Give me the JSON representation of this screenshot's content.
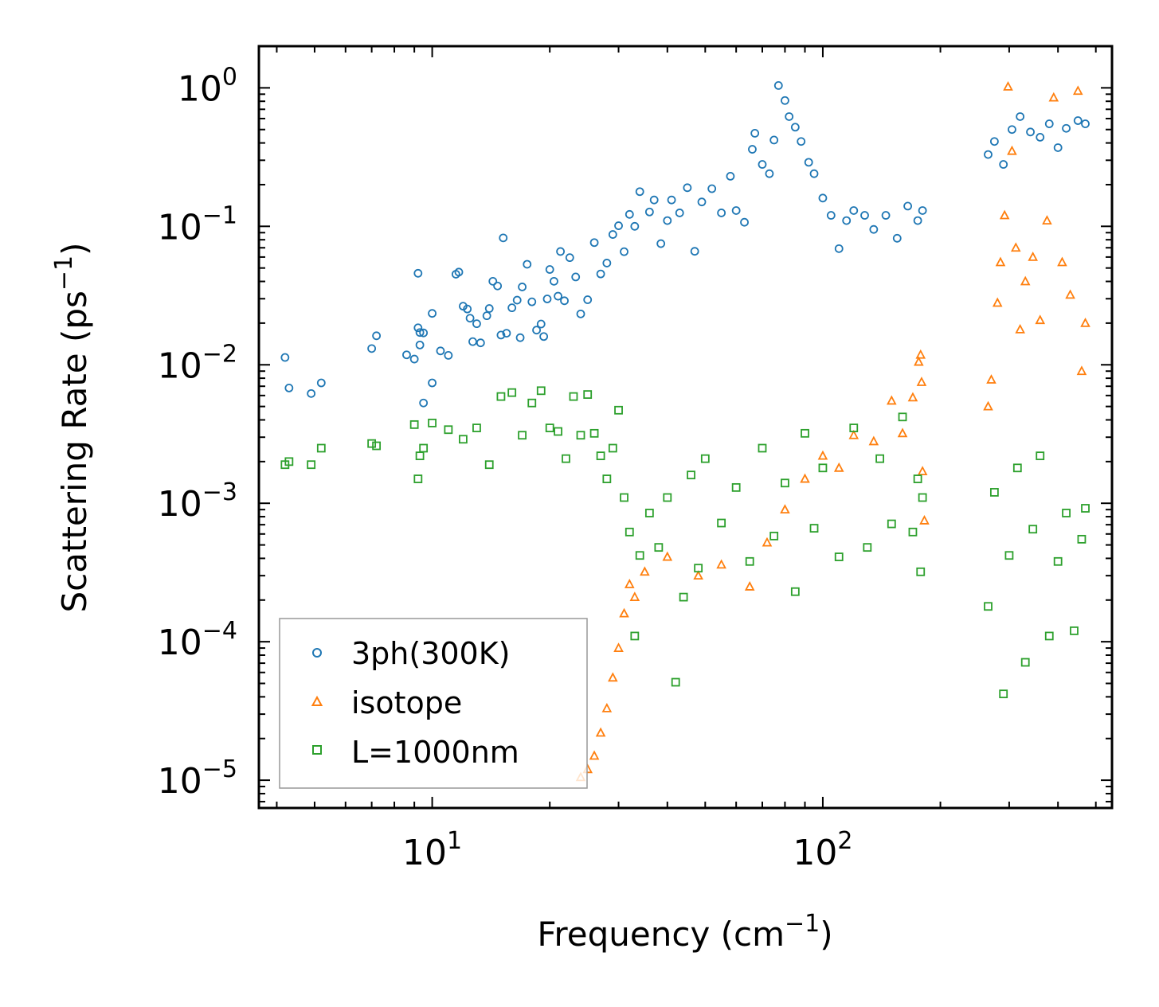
{
  "chart_data": {
    "type": "scatter",
    "title": "",
    "xlabel": {
      "text": "Frequency (cm",
      "sup": "−1",
      "close": ")"
    },
    "ylabel": {
      "text": "Scattering Rate (ps",
      "sup": "−1",
      "close": ")"
    },
    "xscale": "log",
    "yscale": "log",
    "xlim": [
      3.6,
      550
    ],
    "ylim": [
      6.3e-06,
      2.0
    ],
    "grid": false,
    "legend_position": "lower-left",
    "x_major_ticks": [
      {
        "value": 10,
        "base": "10",
        "exp": "1"
      },
      {
        "value": 100,
        "base": "10",
        "exp": "2"
      }
    ],
    "y_major_ticks": [
      {
        "value": 1,
        "base": "10",
        "exp": "0"
      },
      {
        "value": 0.1,
        "base": "10",
        "exp": "−1"
      },
      {
        "value": 0.01,
        "base": "10",
        "exp": "−2"
      },
      {
        "value": 0.001,
        "base": "10",
        "exp": "−3"
      },
      {
        "value": 0.0001,
        "base": "10",
        "exp": "−4"
      },
      {
        "value": 1e-05,
        "base": "10",
        "exp": "−5"
      }
    ],
    "series": [
      {
        "name": "3ph(300K)",
        "marker": "circle",
        "color": "#1f77b4",
        "points": [
          [
            4.2,
            0.0113
          ],
          [
            4.3,
            0.0068
          ],
          [
            4.9,
            0.0062
          ],
          [
            5.2,
            0.0074
          ],
          [
            7.0,
            0.0131
          ],
          [
            7.2,
            0.0162
          ],
          [
            8.6,
            0.0118
          ],
          [
            9.0,
            0.011
          ],
          [
            9.2,
            0.0458
          ],
          [
            9.2,
            0.0185
          ],
          [
            9.3,
            0.0171
          ],
          [
            9.3,
            0.0139
          ],
          [
            9.5,
            0.017
          ],
          [
            9.5,
            0.0053
          ],
          [
            10.0,
            0.0074
          ],
          [
            10.0,
            0.0235
          ],
          [
            10.5,
            0.0126
          ],
          [
            11.0,
            0.0117
          ],
          [
            11.5,
            0.0451
          ],
          [
            11.7,
            0.0467
          ],
          [
            12.0,
            0.0265
          ],
          [
            12.3,
            0.0253
          ],
          [
            12.5,
            0.0217
          ],
          [
            12.7,
            0.0147
          ],
          [
            13.0,
            0.0198
          ],
          [
            13.3,
            0.0144
          ],
          [
            13.8,
            0.0226
          ],
          [
            14.0,
            0.0255
          ],
          [
            14.3,
            0.0401
          ],
          [
            14.7,
            0.0371
          ],
          [
            15.0,
            0.0164
          ],
          [
            15.2,
            0.0825
          ],
          [
            15.5,
            0.0169
          ],
          [
            16.0,
            0.0258
          ],
          [
            16.5,
            0.0293
          ],
          [
            16.8,
            0.0157
          ],
          [
            17.0,
            0.0365
          ],
          [
            17.5,
            0.0532
          ],
          [
            18.0,
            0.0285
          ],
          [
            18.5,
            0.0178
          ],
          [
            19.0,
            0.0197
          ],
          [
            19.3,
            0.016
          ],
          [
            19.7,
            0.0299
          ],
          [
            20.0,
            0.0488
          ],
          [
            20.5,
            0.0401
          ],
          [
            21.0,
            0.0313
          ],
          [
            21.3,
            0.0658
          ],
          [
            21.8,
            0.029
          ],
          [
            22.5,
            0.0594
          ],
          [
            23.3,
            0.0431
          ],
          [
            24.0,
            0.0233
          ],
          [
            25.0,
            0.0295
          ],
          [
            26.0,
            0.0763
          ],
          [
            27.0,
            0.0453
          ],
          [
            28.0,
            0.0543
          ],
          [
            29.0,
            0.0873
          ],
          [
            30.0,
            0.101
          ],
          [
            31.0,
            0.0656
          ],
          [
            32.0,
            0.122
          ],
          [
            33.0,
            0.1
          ],
          [
            34.0,
            0.178
          ],
          [
            36.0,
            0.127
          ],
          [
            37.0,
            0.155
          ],
          [
            38.5,
            0.075
          ],
          [
            40.0,
            0.11
          ],
          [
            41.0,
            0.155
          ],
          [
            43.0,
            0.125
          ],
          [
            45.0,
            0.19
          ],
          [
            47.0,
            0.066
          ],
          [
            49.0,
            0.15
          ],
          [
            52.0,
            0.187
          ],
          [
            55.0,
            0.125
          ],
          [
            58.0,
            0.23
          ],
          [
            60.0,
            0.13
          ],
          [
            63.0,
            0.107
          ],
          [
            66.0,
            0.36
          ],
          [
            67.0,
            0.47
          ],
          [
            70.0,
            0.28
          ],
          [
            73.0,
            0.24
          ],
          [
            75.0,
            0.42
          ],
          [
            77.0,
            1.04
          ],
          [
            80.0,
            0.81
          ],
          [
            82.0,
            0.62
          ],
          [
            85.0,
            0.52
          ],
          [
            88.0,
            0.41
          ],
          [
            92.0,
            0.29
          ],
          [
            95.0,
            0.24
          ],
          [
            100.0,
            0.16
          ],
          [
            105.0,
            0.12
          ],
          [
            110.0,
            0.069
          ],
          [
            115.0,
            0.11
          ],
          [
            120.0,
            0.13
          ],
          [
            128.0,
            0.12
          ],
          [
            135.0,
            0.095
          ],
          [
            145.0,
            0.12
          ],
          [
            155.0,
            0.082
          ],
          [
            165.0,
            0.14
          ],
          [
            175.0,
            0.11
          ],
          [
            180.0,
            0.13
          ],
          [
            265.0,
            0.33
          ],
          [
            275.0,
            0.41
          ],
          [
            290.0,
            0.28
          ],
          [
            305.0,
            0.5
          ],
          [
            320.0,
            0.62
          ],
          [
            340.0,
            0.48
          ],
          [
            360.0,
            0.44
          ],
          [
            380.0,
            0.55
          ],
          [
            400.0,
            0.37
          ],
          [
            420.0,
            0.51
          ],
          [
            450.0,
            0.58
          ],
          [
            470.0,
            0.55
          ]
        ]
      },
      {
        "name": "isotope",
        "marker": "triangle",
        "color": "#ff7f0e",
        "points": [
          [
            24.0,
            1.05e-05
          ],
          [
            25.0,
            1.2e-05
          ],
          [
            26.0,
            1.5e-05
          ],
          [
            27.0,
            2.2e-05
          ],
          [
            28.0,
            3.3e-05
          ],
          [
            29.0,
            5.5e-05
          ],
          [
            30.0,
            9e-05
          ],
          [
            31.0,
            0.00016
          ],
          [
            32.0,
            0.00026
          ],
          [
            33.0,
            0.00021
          ],
          [
            35.0,
            0.00032
          ],
          [
            40.0,
            0.00041
          ],
          [
            48.0,
            0.0003
          ],
          [
            55.0,
            0.00036
          ],
          [
            65.0,
            0.00025
          ],
          [
            72.0,
            0.00052
          ],
          [
            80.0,
            0.0009
          ],
          [
            90.0,
            0.0015
          ],
          [
            100.0,
            0.0022
          ],
          [
            110.0,
            0.0018
          ],
          [
            120.0,
            0.0031
          ],
          [
            135.0,
            0.0028
          ],
          [
            150.0,
            0.0055
          ],
          [
            160.0,
            0.0032
          ],
          [
            170.0,
            0.0058
          ],
          [
            176.0,
            0.0105
          ],
          [
            178.0,
            0.0118
          ],
          [
            179.0,
            0.0075
          ],
          [
            180.0,
            0.0017
          ],
          [
            182.0,
            0.00075
          ],
          [
            265.0,
            0.005
          ],
          [
            270.0,
            0.0078
          ],
          [
            280.0,
            0.028
          ],
          [
            285.0,
            0.055
          ],
          [
            292.0,
            0.12
          ],
          [
            298.0,
            1.02
          ],
          [
            305.0,
            0.35
          ],
          [
            312.0,
            0.07
          ],
          [
            320.0,
            0.018
          ],
          [
            330.0,
            0.04
          ],
          [
            345.0,
            0.06
          ],
          [
            360.0,
            0.021
          ],
          [
            375.0,
            0.11
          ],
          [
            390.0,
            0.85
          ],
          [
            410.0,
            0.055
          ],
          [
            430.0,
            0.032
          ],
          [
            450.0,
            0.95
          ],
          [
            460.0,
            0.009
          ],
          [
            470.0,
            0.02
          ]
        ]
      },
      {
        "name": "L=1000nm",
        "marker": "square",
        "color": "#2ca02c",
        "points": [
          [
            4.2,
            0.0019
          ],
          [
            4.3,
            0.002
          ],
          [
            4.9,
            0.0019
          ],
          [
            5.2,
            0.0025
          ],
          [
            7.0,
            0.0027
          ],
          [
            7.2,
            0.0026
          ],
          [
            9.0,
            0.0037
          ],
          [
            9.2,
            0.0015
          ],
          [
            9.3,
            0.0022
          ],
          [
            9.5,
            0.0025
          ],
          [
            10.0,
            0.0038
          ],
          [
            11.0,
            0.0034
          ],
          [
            12.0,
            0.0029
          ],
          [
            13.0,
            0.0035
          ],
          [
            14.0,
            0.0019
          ],
          [
            15.0,
            0.0059
          ],
          [
            16.0,
            0.0063
          ],
          [
            17.0,
            0.0031
          ],
          [
            18.0,
            0.0053
          ],
          [
            19.0,
            0.0065
          ],
          [
            20.0,
            0.0035
          ],
          [
            21.0,
            0.0033
          ],
          [
            22.0,
            0.0021
          ],
          [
            23.0,
            0.0059
          ],
          [
            24.0,
            0.0031
          ],
          [
            25.0,
            0.0061
          ],
          [
            26.0,
            0.0032
          ],
          [
            27.0,
            0.0022
          ],
          [
            28.0,
            0.0015
          ],
          [
            29.0,
            0.0025
          ],
          [
            30.0,
            0.0047
          ],
          [
            31.0,
            0.0011
          ],
          [
            32.0,
            0.00062
          ],
          [
            33.0,
            0.00011
          ],
          [
            34.0,
            0.00042
          ],
          [
            36.0,
            0.00085
          ],
          [
            38.0,
            0.00048
          ],
          [
            40.0,
            0.0011
          ],
          [
            42.0,
            5.1e-05
          ],
          [
            44.0,
            0.00021
          ],
          [
            46.0,
            0.0016
          ],
          [
            48.0,
            0.00034
          ],
          [
            50.0,
            0.0021
          ],
          [
            55.0,
            0.00072
          ],
          [
            60.0,
            0.0013
          ],
          [
            65.0,
            0.00038
          ],
          [
            70.0,
            0.0025
          ],
          [
            75.0,
            0.00058
          ],
          [
            80.0,
            0.0014
          ],
          [
            85.0,
            0.00023
          ],
          [
            90.0,
            0.0032
          ],
          [
            95.0,
            0.00066
          ],
          [
            100.0,
            0.0018
          ],
          [
            110.0,
            0.00041
          ],
          [
            120.0,
            0.0035
          ],
          [
            130.0,
            0.00048
          ],
          [
            140.0,
            0.0021
          ],
          [
            150.0,
            0.00071
          ],
          [
            160.0,
            0.0042
          ],
          [
            170.0,
            0.00062
          ],
          [
            175.0,
            0.0015
          ],
          [
            178.0,
            0.00032
          ],
          [
            180.0,
            0.0011
          ],
          [
            265.0,
            0.00018
          ],
          [
            275.0,
            0.0012
          ],
          [
            290.0,
            4.2e-05
          ],
          [
            300.0,
            0.00042
          ],
          [
            315.0,
            0.0018
          ],
          [
            330.0,
            7.1e-05
          ],
          [
            345.0,
            0.00065
          ],
          [
            360.0,
            0.0022
          ],
          [
            380.0,
            0.00011
          ],
          [
            400.0,
            0.00038
          ],
          [
            420.0,
            0.00085
          ],
          [
            440.0,
            0.00012
          ],
          [
            460.0,
            0.00055
          ],
          [
            470.0,
            0.00092
          ]
        ]
      }
    ]
  }
}
